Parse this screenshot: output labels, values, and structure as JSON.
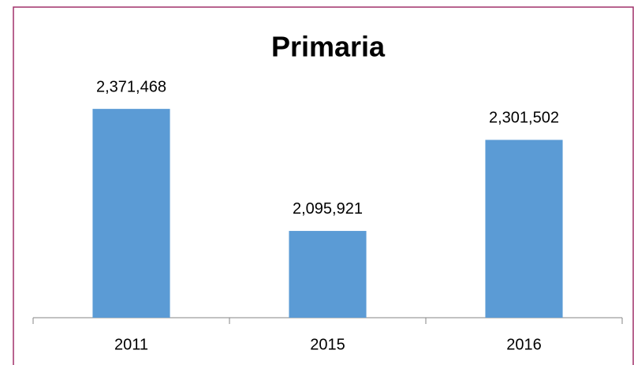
{
  "chart_data": {
    "type": "bar",
    "title": "Primaria",
    "categories": [
      "2011",
      "2015",
      "2016"
    ],
    "values": [
      2371468,
      2095921,
      2301502
    ],
    "value_labels": [
      "2,371,468",
      "2,095,921",
      "2,301,502"
    ],
    "color": "#5b9bd5",
    "ylim": [
      1900000,
      2450000
    ]
  }
}
